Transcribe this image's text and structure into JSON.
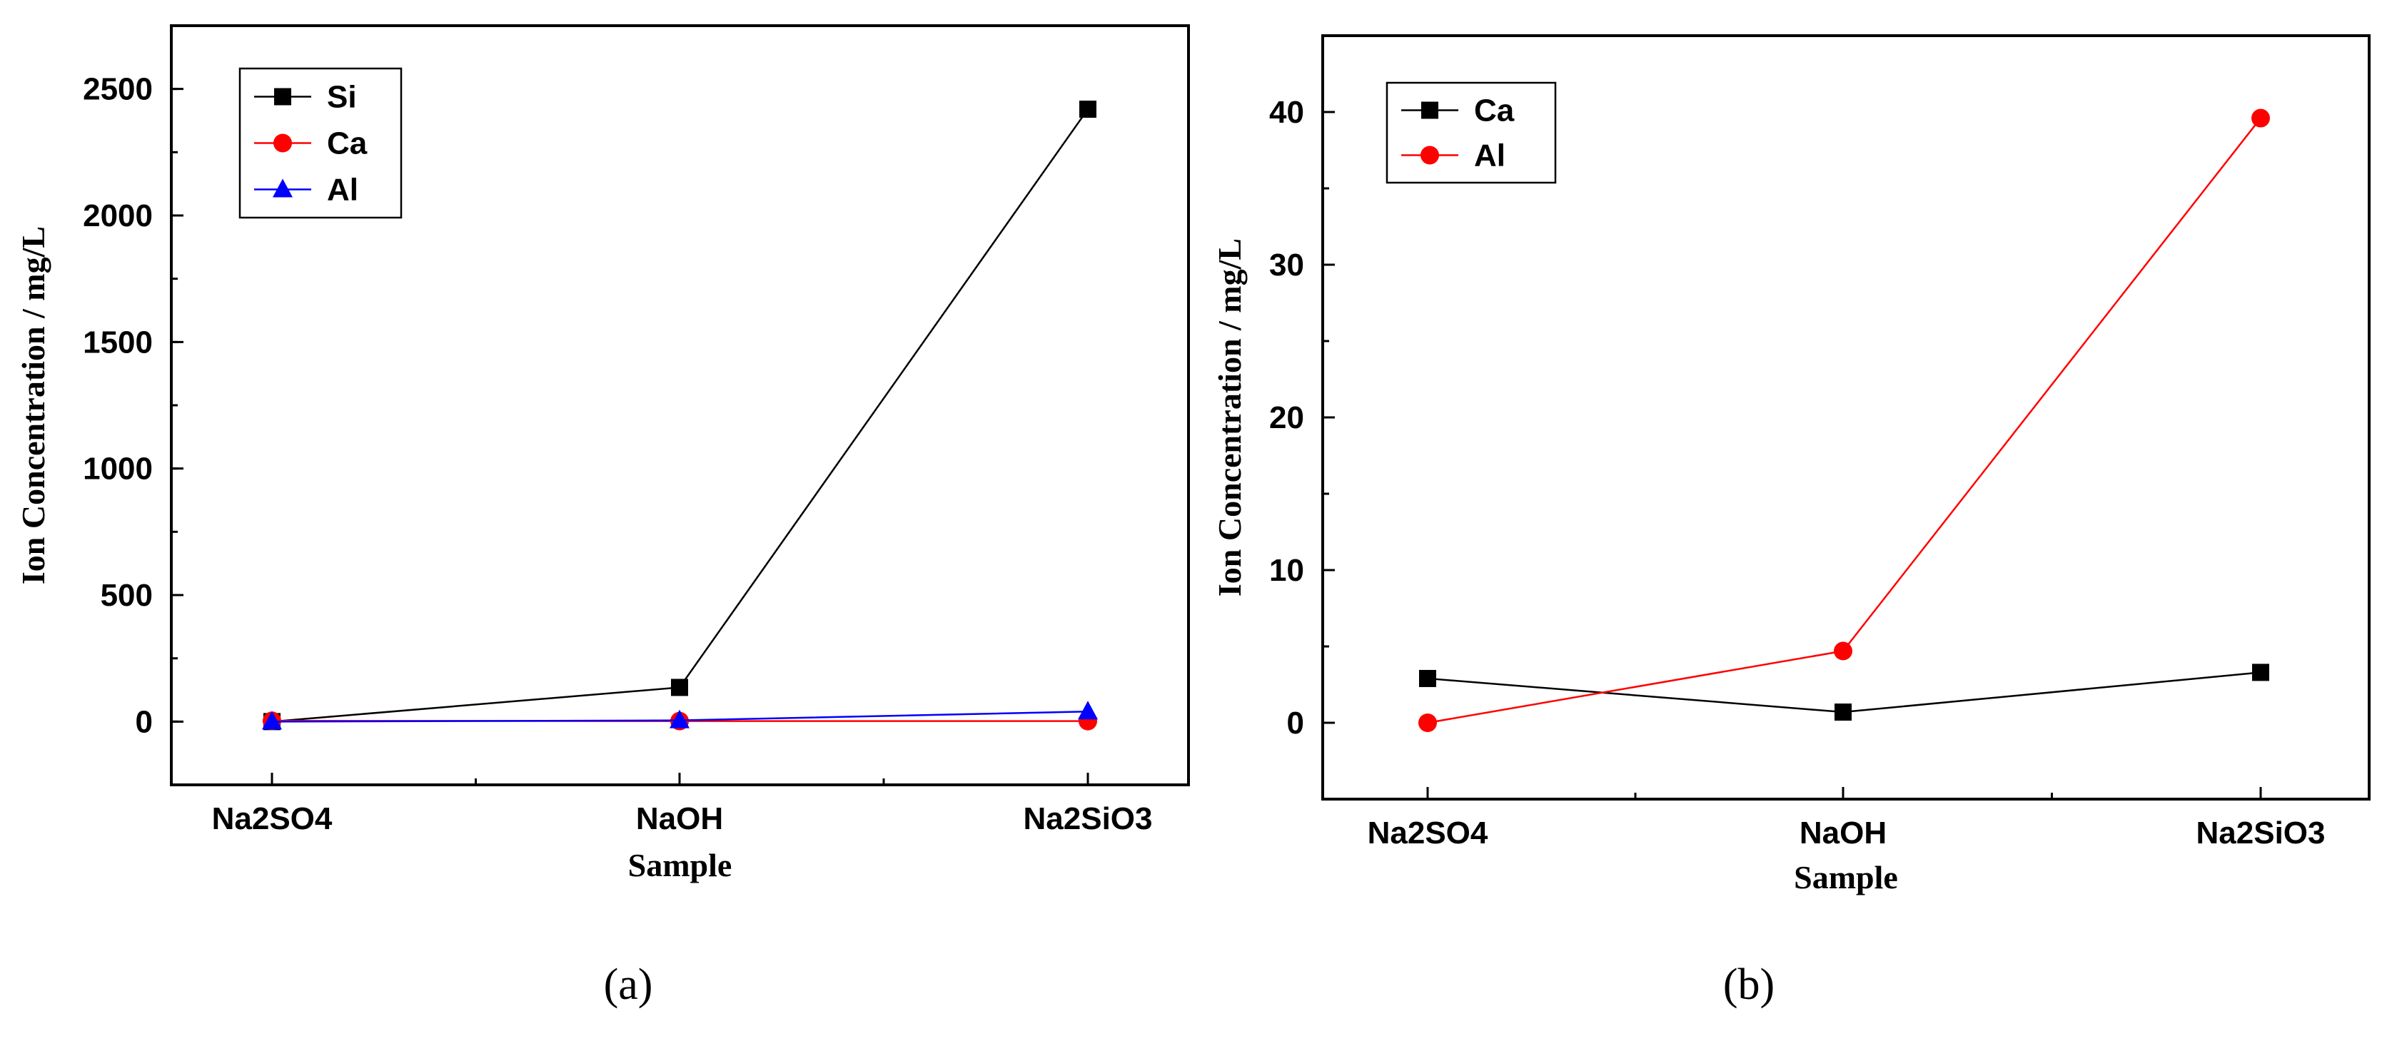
{
  "chart_data": [
    {
      "id": "a",
      "type": "line",
      "caption": "(a)",
      "xlabel": "Sample",
      "ylabel": "Ion Concentration / mg/L",
      "categories": [
        "Na2SO4",
        "NaOH",
        "Na2SiO3"
      ],
      "ylim": [
        -250,
        2750
      ],
      "yticks": [
        0,
        500,
        1000,
        1500,
        2000,
        2500
      ],
      "y_minor_step": 250,
      "legend_position": "top-left",
      "series": [
        {
          "name": "Si",
          "color": "#000000",
          "marker": "square",
          "values": [
            0,
            135,
            2420
          ]
        },
        {
          "name": "Ca",
          "color": "#ff0000",
          "marker": "circle",
          "values": [
            3,
            2,
            2
          ]
        },
        {
          "name": "Al",
          "color": "#0000ff",
          "marker": "triangle",
          "values": [
            0,
            4.7,
            39.6
          ]
        }
      ]
    },
    {
      "id": "b",
      "type": "line",
      "caption": "(b)",
      "xlabel": "Sample",
      "ylabel": "Ion Concentration / mg/L",
      "categories": [
        "Na2SO4",
        "NaOH",
        "Na2SiO3"
      ],
      "ylim": [
        -5,
        45
      ],
      "yticks": [
        0,
        10,
        20,
        30,
        40
      ],
      "y_minor_step": 5,
      "legend_position": "top-left",
      "series": [
        {
          "name": "Ca",
          "color": "#000000",
          "marker": "square",
          "values": [
            2.9,
            0.7,
            3.3
          ]
        },
        {
          "name": "Al",
          "color": "#ff0000",
          "marker": "circle",
          "values": [
            0,
            4.7,
            39.6
          ]
        }
      ]
    }
  ]
}
